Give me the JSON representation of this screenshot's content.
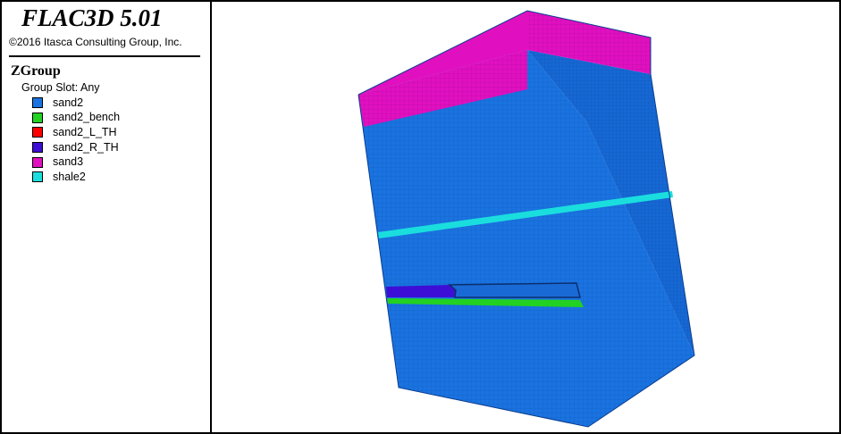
{
  "app": {
    "title": "FLAC3D 5.01",
    "copyright": "©2016 Itasca Consulting Group, Inc."
  },
  "legend": {
    "title": "ZGroup",
    "subtitle": "Group Slot: Any",
    "items": [
      {
        "label": "sand2",
        "color": "#1a73e0"
      },
      {
        "label": "sand2_bench",
        "color": "#22d122"
      },
      {
        "label": "sand2_L_TH",
        "color": "#ff0000"
      },
      {
        "label": "sand2_R_TH",
        "color": "#3d0fd6"
      },
      {
        "label": "sand3",
        "color": "#e010c0"
      },
      {
        "label": "shale2",
        "color": "#1adede"
      }
    ]
  },
  "model_view": {
    "body_color": "#1a73e0",
    "body_side_color": "#1668d4",
    "top_layer_color": "#e010c0",
    "seam_color": "#1adede",
    "bench_color": "#22d122",
    "tunnel_color": "#3d0fd6"
  }
}
